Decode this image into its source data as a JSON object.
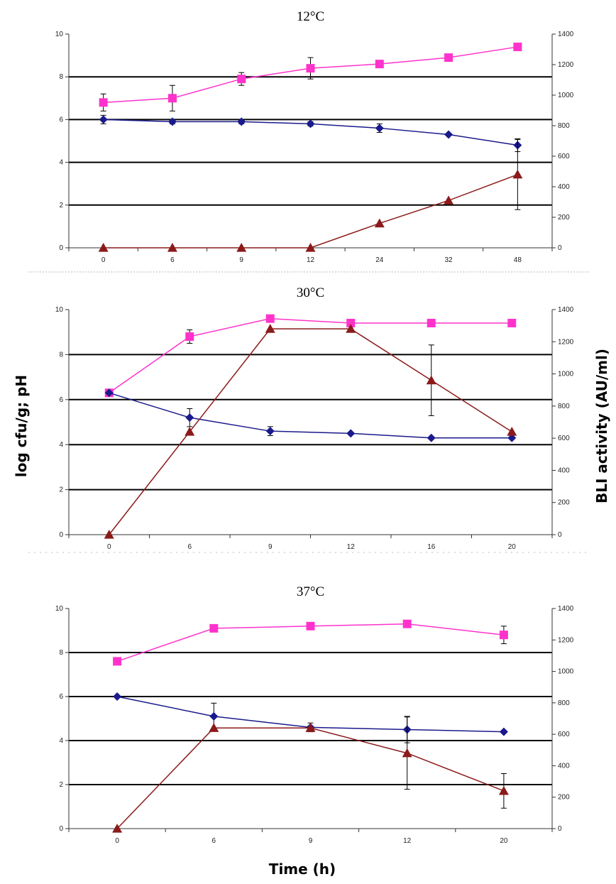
{
  "figure": {
    "ylabel_left": "log cfu/g; pH",
    "ylabel_right": "BLI activity (AU/ml)",
    "xlabel": "Time (h)"
  },
  "colors": {
    "pink": "#ff33cc",
    "blue": "#1a1a8c",
    "red": "#8b1a1a"
  },
  "chart_data": [
    {
      "type": "line",
      "title": "12°C",
      "categories": [
        "0",
        "6",
        "9",
        "12",
        "24",
        "32",
        "48"
      ],
      "ylim": [
        0,
        10
      ],
      "y_ticks": [
        "0",
        "2",
        "4",
        "6",
        "8",
        "10"
      ],
      "y2lim": [
        0,
        1400
      ],
      "y2_ticks": [
        "0",
        "200",
        "400",
        "600",
        "800",
        "1000",
        "1200",
        "1400"
      ],
      "grid": "major horizontal",
      "series": [
        {
          "color": "pink",
          "marker": "square",
          "axis": "left",
          "values": [
            6.8,
            7.0,
            7.9,
            8.4,
            8.6,
            8.9,
            9.4
          ],
          "errors": [
            0.4,
            0.6,
            0.3,
            0.5,
            0,
            0,
            0
          ]
        },
        {
          "color": "blue",
          "marker": "diamond",
          "axis": "left",
          "values": [
            6.0,
            5.9,
            5.9,
            5.8,
            5.6,
            5.3,
            4.8
          ],
          "errors": [
            0.2,
            0.1,
            0.1,
            0.1,
            0.2,
            0,
            0.3
          ]
        },
        {
          "color": "red",
          "marker": "triangle",
          "axis": "right",
          "values": [
            0,
            0,
            0,
            0,
            160,
            310,
            480
          ],
          "errors": [
            0,
            0,
            0,
            0,
            0,
            0,
            230
          ]
        }
      ]
    },
    {
      "type": "line",
      "title": "30°C",
      "categories": [
        "0",
        "6",
        "9",
        "12",
        "16",
        "20"
      ],
      "ylim": [
        0,
        10
      ],
      "y_ticks": [
        "0",
        "2",
        "4",
        "6",
        "8",
        "10"
      ],
      "y2lim": [
        0,
        1400
      ],
      "y2_ticks": [
        "0",
        "200",
        "400",
        "600",
        "800",
        "1000",
        "1200",
        "1400"
      ],
      "grid": "major horizontal",
      "series": [
        {
          "color": "pink",
          "marker": "square",
          "axis": "left",
          "values": [
            6.3,
            8.8,
            9.6,
            9.4,
            9.4,
            9.4
          ],
          "errors": [
            0,
            0.3,
            0,
            0,
            0,
            0
          ]
        },
        {
          "color": "blue",
          "marker": "diamond",
          "axis": "left",
          "values": [
            6.3,
            5.2,
            4.6,
            4.5,
            4.3,
            4.3
          ],
          "errors": [
            0,
            0.4,
            0.2,
            0,
            0,
            0
          ]
        },
        {
          "color": "red",
          "marker": "triangle",
          "axis": "right",
          "values": [
            0,
            640,
            1280,
            1280,
            960,
            640
          ],
          "errors": [
            0,
            0,
            0,
            0,
            220,
            0
          ]
        }
      ]
    },
    {
      "type": "line",
      "title": "37°C",
      "categories": [
        "0",
        "6",
        "9",
        "12",
        "20"
      ],
      "ylim": [
        0,
        10
      ],
      "y_ticks": [
        "0",
        "2",
        "4",
        "6",
        "8",
        "10"
      ],
      "y2lim": [
        0,
        1400
      ],
      "y2_ticks": [
        "0",
        "200",
        "400",
        "600",
        "800",
        "1000",
        "1200",
        "1400"
      ],
      "grid": "major horizontal",
      "series": [
        {
          "color": "pink",
          "marker": "square",
          "axis": "left",
          "values": [
            7.6,
            9.1,
            9.2,
            9.3,
            8.8
          ],
          "errors": [
            0,
            0,
            0,
            0,
            0.4
          ]
        },
        {
          "color": "blue",
          "marker": "diamond",
          "axis": "left",
          "values": [
            6.0,
            5.1,
            4.6,
            4.5,
            4.4
          ],
          "errors": [
            0,
            0.6,
            0.2,
            0.6,
            0
          ]
        },
        {
          "color": "red",
          "marker": "triangle",
          "axis": "right",
          "values": [
            0,
            640,
            640,
            480,
            240
          ],
          "errors": [
            0,
            0,
            0,
            230,
            110
          ]
        }
      ]
    }
  ]
}
